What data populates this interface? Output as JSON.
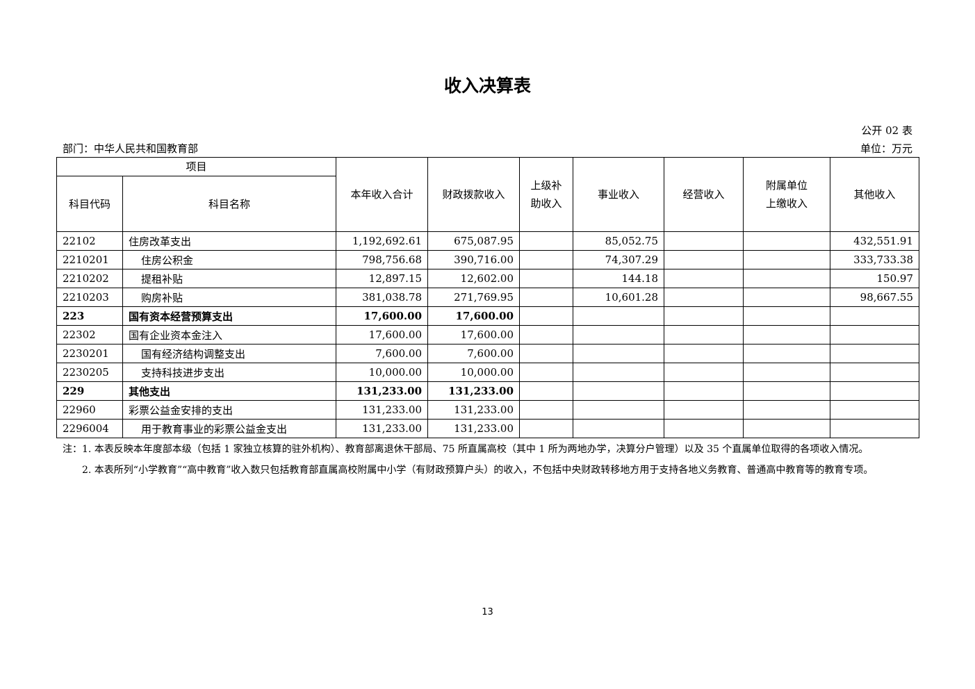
{
  "title": "收入决算表",
  "table_tag": "公开 02 表",
  "department": "部门：中华人民共和国教育部",
  "unit": "单位：万元",
  "headers": {
    "item": "项目",
    "code": "科目代码",
    "name": "科目名称",
    "total": "本年收入合计",
    "fiscal": "财政拨款收入",
    "subsidy": "上级补助收入",
    "business": "事业收入",
    "operating": "经营收入",
    "affiliated": "附属单位上缴收入",
    "other": "其他收入"
  },
  "rows": [
    {
      "code": "22102",
      "name": "住房改革支出",
      "total": "1,192,692.61",
      "fiscal": "675,087.95",
      "subsidy": "",
      "business": "85,052.75",
      "operating": "",
      "affiliated": "",
      "other": "432,551.91"
    },
    {
      "code": "2210201",
      "name": "住房公积金",
      "total": "798,756.68",
      "fiscal": "390,716.00",
      "subsidy": "",
      "business": "74,307.29",
      "operating": "",
      "affiliated": "",
      "other": "333,733.38"
    },
    {
      "code": "2210202",
      "name": "提租补贴",
      "total": "12,897.15",
      "fiscal": "12,602.00",
      "subsidy": "",
      "business": "144.18",
      "operating": "",
      "affiliated": "",
      "other": "150.97"
    },
    {
      "code": "2210203",
      "name": "购房补贴",
      "total": "381,038.78",
      "fiscal": "271,769.95",
      "subsidy": "",
      "business": "10,601.28",
      "operating": "",
      "affiliated": "",
      "other": "98,667.55"
    },
    {
      "code": "223",
      "name": "国有资本经营预算支出",
      "total": "17,600.00",
      "fiscal": "17,600.00",
      "subsidy": "",
      "business": "",
      "operating": "",
      "affiliated": "",
      "other": ""
    },
    {
      "code": "22302",
      "name": "国有企业资本金注入",
      "total": "17,600.00",
      "fiscal": "17,600.00",
      "subsidy": "",
      "business": "",
      "operating": "",
      "affiliated": "",
      "other": ""
    },
    {
      "code": "2230201",
      "name": "国有经济结构调整支出",
      "total": "7,600.00",
      "fiscal": "7,600.00",
      "subsidy": "",
      "business": "",
      "operating": "",
      "affiliated": "",
      "other": ""
    },
    {
      "code": "2230205",
      "name": "支持科技进步支出",
      "total": "10,000.00",
      "fiscal": "10,000.00",
      "subsidy": "",
      "business": "",
      "operating": "",
      "affiliated": "",
      "other": ""
    },
    {
      "code": "229",
      "name": "其他支出",
      "total": "131,233.00",
      "fiscal": "131,233.00",
      "subsidy": "",
      "business": "",
      "operating": "",
      "affiliated": "",
      "other": ""
    },
    {
      "code": "22960",
      "name": "彩票公益金安排的支出",
      "total": "131,233.00",
      "fiscal": "131,233.00",
      "subsidy": "",
      "business": "",
      "operating": "",
      "affiliated": "",
      "other": ""
    },
    {
      "code": "2296004",
      "name": "用于教育事业的彩票公益金支出",
      "total": "131,233.00",
      "fiscal": "131,233.00",
      "subsidy": "",
      "business": "",
      "operating": "",
      "affiliated": "",
      "other": ""
    }
  ],
  "notes": [
    "注：1. 本表反映本年度部本级（包括 1 家独立核算的驻外机构）、教育部离退休干部局、75 所直属高校（其中 1 所为两地办学，决算分户管理）以及 35 个直属单位取得的各项收入情况。",
    "2. 本表所列“小学教育”“高中教育”收入数只包括教育部直属高校附属中小学（有财政预算户头）的收入，不包括中央财政转移地方用于支持各地义务教育、普通高中教育等的教育专项。"
  ],
  "page_number": "13"
}
